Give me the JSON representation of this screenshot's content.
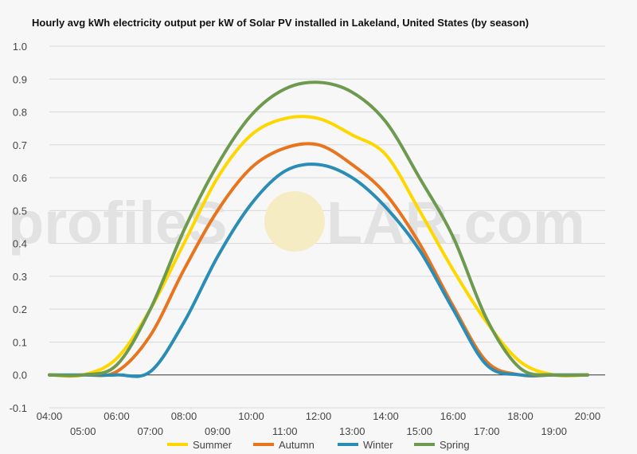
{
  "watermark": {
    "text_left": "profileS",
    "text_right": "LAR.com"
  },
  "chart_data": {
    "type": "line",
    "title": "Hourly avg kWh electricity output per kW of Solar PV installed in Lakeland, United States (by season)",
    "xlabel": "",
    "ylabel": "",
    "ylim": [
      -0.1,
      1.0
    ],
    "yticks": [
      "-0.1",
      "0.0",
      "0.1",
      "0.2",
      "0.3",
      "0.4",
      "0.5",
      "0.6",
      "0.7",
      "0.8",
      "0.9",
      "1.0"
    ],
    "categories": [
      "04:00",
      "05:00",
      "06:00",
      "07:00",
      "08:00",
      "09:00",
      "10:00",
      "11:00",
      "12:00",
      "13:00",
      "14:00",
      "15:00",
      "16:00",
      "17:00",
      "18:00",
      "19:00",
      "20:00"
    ],
    "grid": true,
    "legend_position": "bottom",
    "series": [
      {
        "name": "Summer",
        "color": "#ffd700",
        "values": [
          0.0,
          0.0,
          0.05,
          0.2,
          0.4,
          0.6,
          0.73,
          0.78,
          0.78,
          0.73,
          0.67,
          0.5,
          0.32,
          0.16,
          0.04,
          0.0,
          0.0
        ]
      },
      {
        "name": "Autumn",
        "color": "#e8741e",
        "values": [
          0.0,
          0.0,
          0.01,
          0.12,
          0.32,
          0.5,
          0.63,
          0.69,
          0.7,
          0.64,
          0.55,
          0.4,
          0.21,
          0.04,
          0.0,
          0.0,
          0.0
        ]
      },
      {
        "name": "Winter",
        "color": "#2a8db5",
        "values": [
          0.0,
          0.0,
          0.0,
          0.01,
          0.16,
          0.36,
          0.52,
          0.62,
          0.64,
          0.6,
          0.51,
          0.38,
          0.2,
          0.03,
          0.0,
          0.0,
          0.0
        ]
      },
      {
        "name": "Spring",
        "color": "#6e9a50",
        "values": [
          0.0,
          0.0,
          0.03,
          0.2,
          0.44,
          0.64,
          0.79,
          0.87,
          0.89,
          0.86,
          0.77,
          0.6,
          0.42,
          0.17,
          0.02,
          0.0,
          0.0
        ]
      }
    ]
  }
}
